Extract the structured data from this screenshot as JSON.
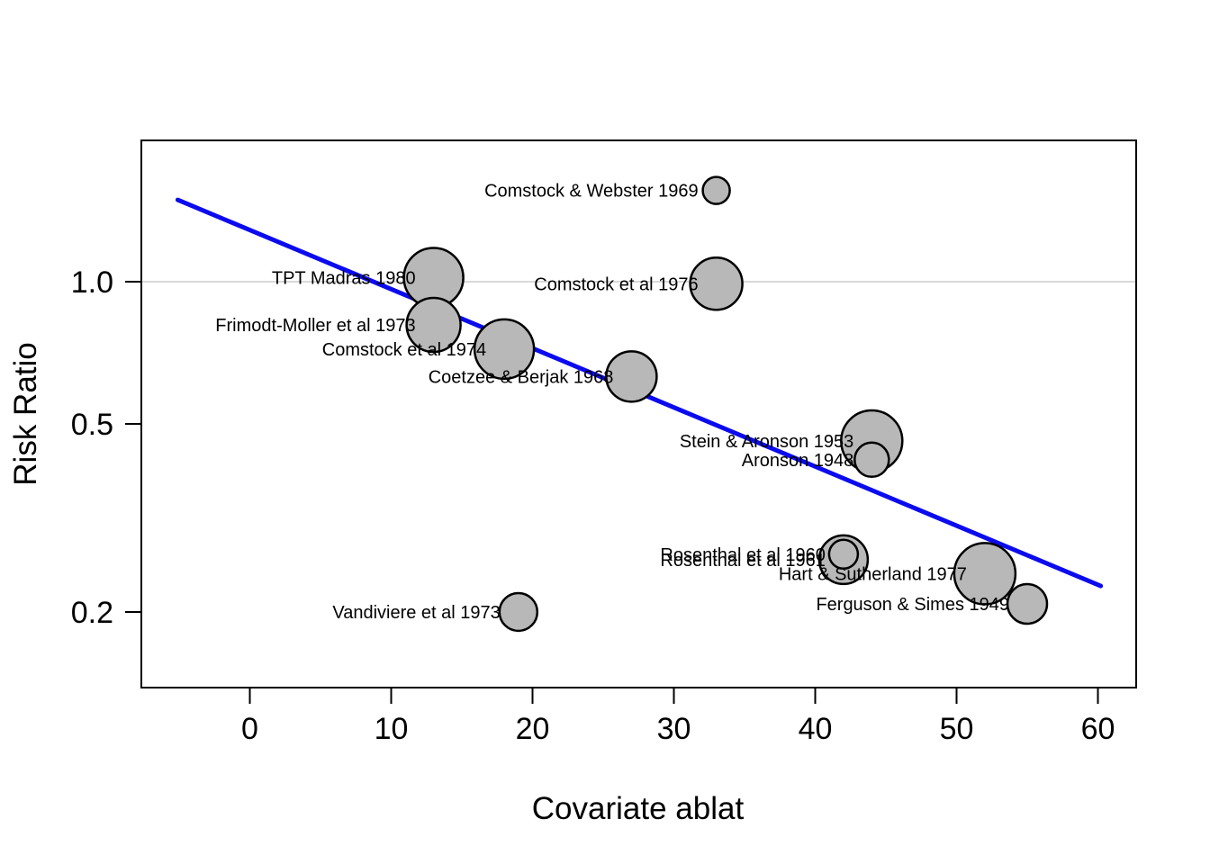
{
  "chart_data": {
    "type": "scatter",
    "subtype": "bubble-meta-regression",
    "title": "",
    "xlabel": "Covariate ablat",
    "ylabel": "Risk Ratio",
    "x_ticks": [
      0,
      10,
      20,
      30,
      40,
      50,
      60
    ],
    "y_ticks": [
      1.0,
      0.5,
      0.2
    ],
    "y_tick_labels": [
      "1.0",
      "0.5",
      "0.2"
    ],
    "y_scale": "log",
    "xlim": [
      -7.7,
      62.7
    ],
    "ylim": [
      0.142,
      1.97
    ],
    "grid": "horizontal line at y = 1.0 only",
    "legend": "none",
    "reference_line_rr": 1.0,
    "regression_line": {
      "x1": -5.1,
      "rr1": 1.49,
      "x2": 60.2,
      "rr2": 0.227
    },
    "points": [
      {
        "label": "TPT Madras 1980",
        "ablat": 13,
        "rr": 1.02,
        "r": 33
      },
      {
        "label": "Frimodt-Moller et al 1973",
        "ablat": 13,
        "rr": 0.81,
        "r": 30
      },
      {
        "label": "Comstock et al 1974",
        "ablat": 18,
        "rr": 0.72,
        "r": 33
      },
      {
        "label": "Coetzee & Berjak 1968",
        "ablat": 27,
        "rr": 0.63,
        "r": 28
      },
      {
        "label": "Comstock & Webster 1969",
        "ablat": 33,
        "rr": 1.56,
        "r": 15
      },
      {
        "label": "Comstock et al 1976",
        "ablat": 33,
        "rr": 0.99,
        "r": 29
      },
      {
        "label": "Stein & Aronson 1953",
        "ablat": 44,
        "rr": 0.46,
        "r": 34
      },
      {
        "label": "Aronson 1948",
        "ablat": 44,
        "rr": 0.42,
        "r": 19
      },
      {
        "label": "Rosenthal et al 1961",
        "ablat": 42,
        "rr": 0.258,
        "r": 27
      },
      {
        "label": "Rosenthal et al 1960",
        "ablat": 42,
        "rr": 0.265,
        "r": 16
      },
      {
        "label": "Hart & Sutherland 1977",
        "ablat": 52,
        "rr": 0.241,
        "r": 34
      },
      {
        "label": "Ferguson & Simes 1949",
        "ablat": 55,
        "rr": 0.208,
        "r": 22
      },
      {
        "label": "Vandiviere et al 1973",
        "ablat": 19,
        "rr": 0.2,
        "r": 21
      }
    ],
    "colors": {
      "bubble_fill": "#B8B8B8",
      "bubble_stroke": "#000000",
      "regression_line": "#0B0BEE",
      "reference_grid": "#D9D9D9",
      "axis": "#000000",
      "background": "#FFFFFF"
    }
  }
}
